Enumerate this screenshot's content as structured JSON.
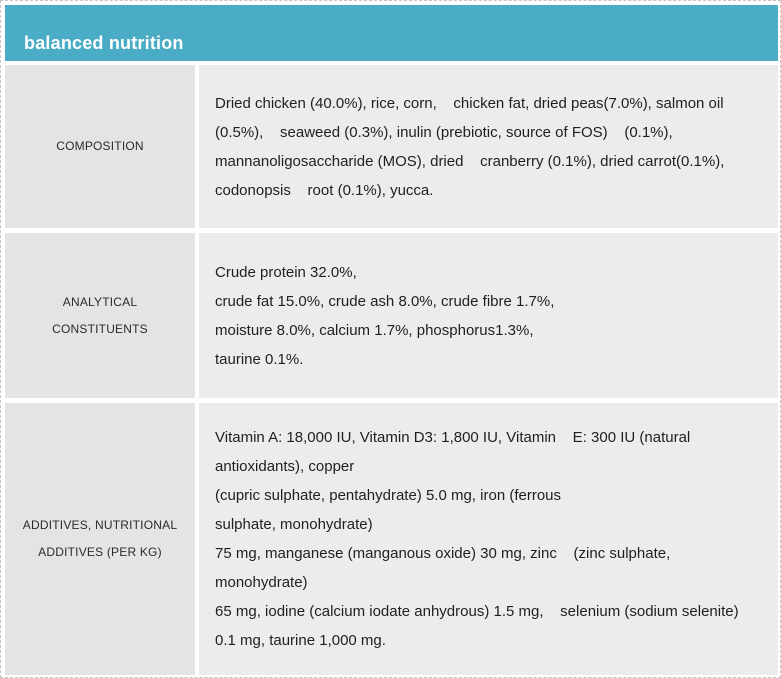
{
  "header": {
    "title": "balanced nutrition"
  },
  "table": {
    "rows": [
      {
        "label": "COMPOSITION",
        "content": "Dried chicken (40.0%), rice, corn,    chicken fat, dried peas(7.0%), salmon oil (0.5%),    seaweed (0.3%), inulin (prebiotic, source of FOS)    (0.1%), mannanoligosaccharide (MOS), dried    cranberry (0.1%), dried carrot(0.1%), codonopsis    root (0.1%), yucca."
      },
      {
        "label": "ANALYTICAL\nCONSTITUENTS",
        "content": "Crude protein 32.0%,\ncrude fat 15.0%, crude ash 8.0%, crude fibre 1.7%,\nmoisture 8.0%, calcium 1.7%, phosphorus1.3%,\ntaurine 0.1%."
      },
      {
        "label": "ADDITIVES, NUTRITIONAL\nADDITIVES (PER KG)",
        "content": "Vitamin A: 18,000 IU, Vitamin D3: 1,800 IU, Vitamin    E: 300 IU (natural antioxidants), copper\n(cupric sulphate, pentahydrate) 5.0 mg, iron (ferrous\nsulphate, monohydrate)\n75 mg, manganese (manganous oxide) 30 mg, zinc    (zinc sulphate,\nmonohydrate)\n65 mg, iodine (calcium iodate anhydrous) 1.5 mg,    selenium (sodium selenite) 0.1 mg, taurine 1,000 mg."
      }
    ]
  },
  "colors": {
    "header_bg": "#4bacc6",
    "header_text": "#ffffff",
    "label_cell_bg": "#e4e4e4",
    "content_cell_bg": "#ececec",
    "divider": "#ffffff",
    "body_text": "#1f1f1f"
  }
}
